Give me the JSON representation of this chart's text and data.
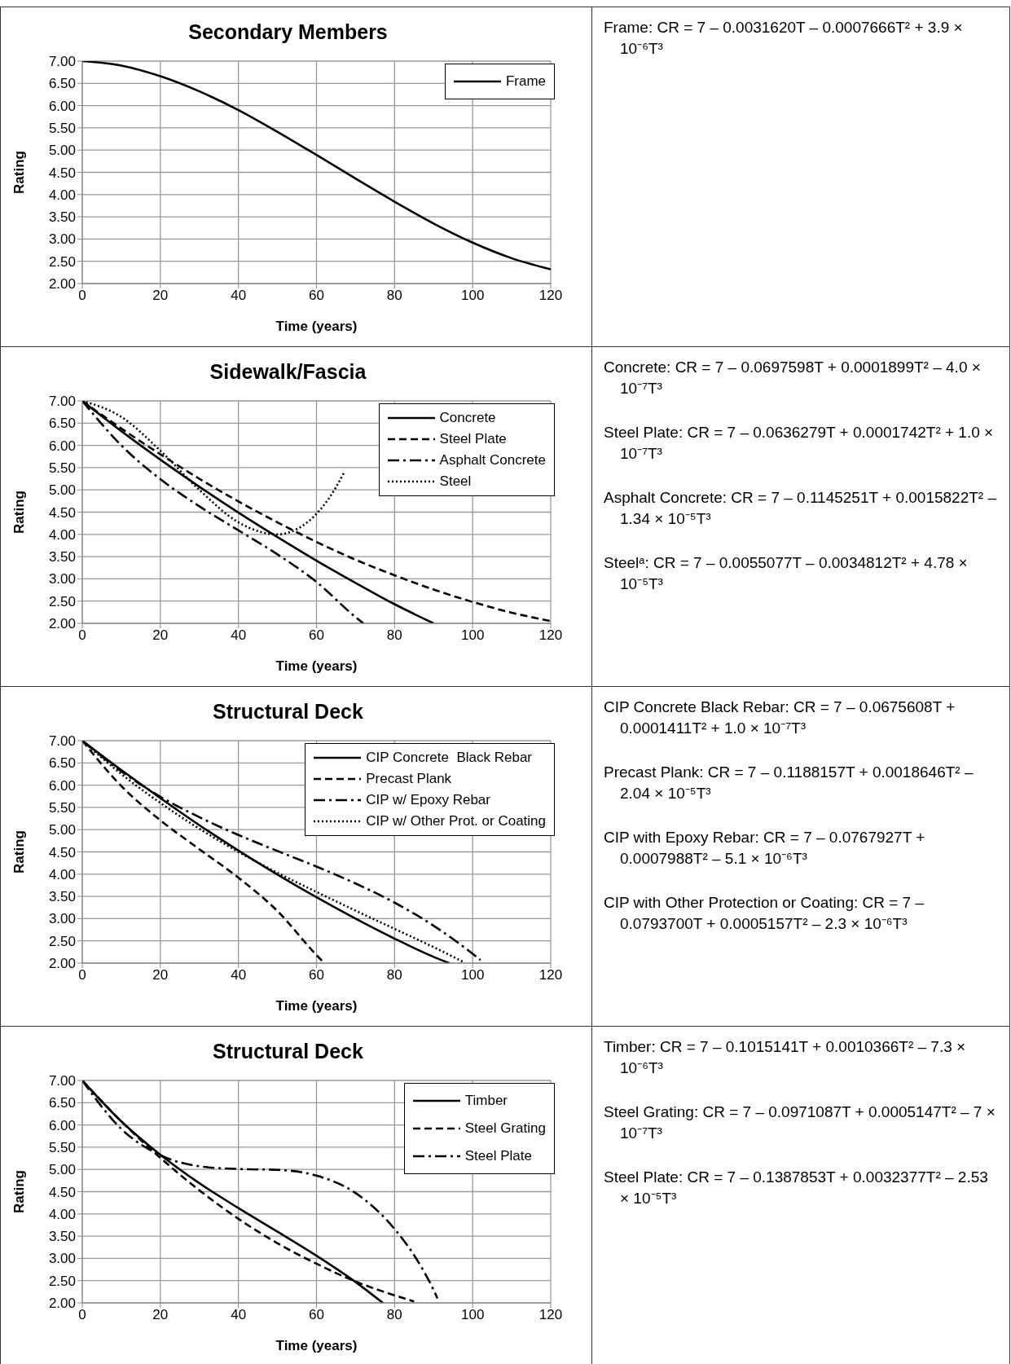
{
  "chart_data": [
    {
      "type": "line",
      "title": "Secondary Members",
      "xlabel": "Time (years)",
      "ylabel": "Rating",
      "xlim": [
        0,
        120
      ],
      "xticks": [
        0,
        20,
        40,
        60,
        80,
        100,
        120
      ],
      "ylim": [
        2,
        7
      ],
      "yticks": [
        {
          "value": 2,
          "label": "2.00"
        },
        {
          "value": 2.5,
          "label": "2.50"
        },
        {
          "value": 3,
          "label": "3.00"
        },
        {
          "value": 3.5,
          "label": "3.50"
        },
        {
          "value": 4,
          "label": "4.00"
        },
        {
          "value": 4.5,
          "label": "4.50"
        },
        {
          "value": 5,
          "label": "5.00"
        },
        {
          "value": 5.5,
          "label": "5.50"
        },
        {
          "value": 6,
          "label": "6.00"
        },
        {
          "value": 6.5,
          "label": "6.50"
        },
        {
          "value": 7,
          "label": "7.00"
        }
      ],
      "grid": true,
      "legend": "top right",
      "series": [
        {
          "name": "Frame",
          "color": "#000000",
          "line_style": "solid",
          "x": [
            0,
            10,
            20,
            30,
            40,
            50,
            60,
            70,
            80,
            90,
            100,
            110,
            120
          ],
          "values": [
            7,
            6.9,
            6.66,
            6.32,
            5.9,
            5.41,
            4.89,
            4.36,
            3.84,
            3.35,
            2.92,
            2.57,
            2.32
          ]
        }
      ]
    },
    {
      "type": "other",
      "annotations": [
        "Frame: CR = 7 – 0.0031620T – 0.0007666T² + 3.9 × 10⁻⁶T³"
      ]
    },
    {
      "type": "line",
      "title": "Sidewalk/Fascia",
      "xlabel": "Time (years)",
      "ylabel": "Rating",
      "xlim": [
        0,
        120
      ],
      "xticks": [
        0,
        20,
        40,
        60,
        80,
        100,
        120
      ],
      "ylim": [
        2,
        7
      ],
      "yticks": [
        {
          "value": 2,
          "label": "2.00"
        },
        {
          "value": 2.5,
          "label": "2.50"
        },
        {
          "value": 3,
          "label": "3.00"
        },
        {
          "value": 3.5,
          "label": "3.50"
        },
        {
          "value": 4,
          "label": "4.00"
        },
        {
          "value": 4.5,
          "label": "4.50"
        },
        {
          "value": 5,
          "label": "5.00"
        },
        {
          "value": 5.5,
          "label": "5.50"
        },
        {
          "value": 6,
          "label": "6.00"
        },
        {
          "value": 6.5,
          "label": "6.50"
        },
        {
          "value": 7,
          "label": "7.00"
        }
      ],
      "grid": true,
      "legend": "top right",
      "series": [
        {
          "name": "Concrete",
          "color": "#000000",
          "line_style": "solid",
          "x": [
            0,
            10,
            20,
            30,
            40,
            50,
            60,
            70,
            80,
            90
          ],
          "values": [
            7,
            6.32,
            5.68,
            5.07,
            4.49,
            3.94,
            3.41,
            2.91,
            2.43,
            2.0
          ]
        },
        {
          "name": "Steel Plate",
          "color": "#000000",
          "line_style": "dashed",
          "x": [
            0,
            10,
            20,
            30,
            40,
            50,
            60,
            70,
            80,
            90,
            100,
            110,
            120
          ],
          "values": [
            7,
            6.38,
            5.8,
            5.25,
            4.74,
            4.27,
            3.83,
            3.43,
            3.08,
            2.76,
            2.48,
            2.24,
            2.05
          ]
        },
        {
          "name": "Asphalt Concrete",
          "color": "#000000",
          "line_style": "dashdot",
          "x": [
            0,
            10,
            20,
            30,
            40,
            50,
            60,
            70,
            72
          ],
          "values": [
            7,
            6.0,
            5.24,
            4.63,
            4.09,
            3.55,
            2.93,
            2.14,
            2.0
          ]
        },
        {
          "name": "Steel",
          "color": "#000000",
          "line_style": "dotted",
          "x": [
            0,
            10,
            20,
            30,
            40,
            50,
            55,
            60,
            65,
            67
          ],
          "values": [
            7,
            6.64,
            5.88,
            5.0,
            4.27,
            4.0,
            4.12,
            4.46,
            5.06,
            5.38
          ]
        }
      ]
    },
    {
      "type": "other",
      "annotations": [
        "Concrete: CR = 7 – 0.0697598T + 0.0001899T² – 4.0 × 10⁻⁷T³",
        "Steel Plate: CR = 7 – 0.0636279T + 0.0001742T² + 1.0 × 10⁻⁷T³",
        "Asphalt Concrete: CR = 7 – 0.1145251T + 0.0015822T² – 1.34 × 10⁻⁵T³",
        "Steelᵃ: CR = 7 – 0.0055077T – 0.0034812T² + 4.78 × 10⁻⁵T³"
      ]
    },
    {
      "type": "line",
      "title": "Structural Deck",
      "xlabel": "Time (years)",
      "ylabel": "Rating",
      "xlim": [
        0,
        120
      ],
      "xticks": [
        0,
        20,
        40,
        60,
        80,
        100,
        120
      ],
      "ylim": [
        2,
        7
      ],
      "yticks": [
        {
          "value": 2,
          "label": "2.00"
        },
        {
          "value": 2.5,
          "label": "2.50"
        },
        {
          "value": 3,
          "label": "3.00"
        },
        {
          "value": 3.5,
          "label": "3.50"
        },
        {
          "value": 4,
          "label": "4.00"
        },
        {
          "value": 4.5,
          "label": "4.50"
        },
        {
          "value": 5,
          "label": "5.00"
        },
        {
          "value": 5.5,
          "label": "5.50"
        },
        {
          "value": 6,
          "label": "6.00"
        },
        {
          "value": 6.5,
          "label": "6.50"
        },
        {
          "value": 7,
          "label": "7.00"
        }
      ],
      "grid": true,
      "legend": "top right",
      "series": [
        {
          "name": "CIP Concrete  Black Rebar",
          "color": "#000000",
          "line_style": "solid",
          "x": [
            0,
            10,
            20,
            30,
            40,
            50,
            60,
            70,
            80,
            90,
            94
          ],
          "values": [
            7,
            6.34,
            5.71,
            5.1,
            4.53,
            3.99,
            3.48,
            3.0,
            2.55,
            2.14,
            2.0
          ]
        },
        {
          "name": "Precast Plank",
          "color": "#000000",
          "line_style": "dashed",
          "x": [
            0,
            10,
            20,
            30,
            40,
            50,
            60,
            62
          ],
          "values": [
            7,
            5.98,
            5.21,
            4.56,
            3.92,
            3.17,
            2.18,
            2.0
          ]
        },
        {
          "name": "CIP w/ Epoxy Rebar",
          "color": "#000000",
          "line_style": "dashdot",
          "x": [
            0,
            10,
            20,
            30,
            40,
            50,
            60,
            70,
            80,
            90,
            100,
            102
          ],
          "values": [
            7,
            6.31,
            5.74,
            5.28,
            4.88,
            4.52,
            4.17,
            3.79,
            3.36,
            2.84,
            2.21,
            2.07
          ]
        },
        {
          "name": "CIP w/ Other Prot. or Coating",
          "color": "#000000",
          "line_style": "dotted",
          "x": [
            0,
            10,
            20,
            30,
            40,
            50,
            60,
            70,
            80,
            90,
            98
          ],
          "values": [
            7,
            6.25,
            5.6,
            5.02,
            4.5,
            4.03,
            3.6,
            3.18,
            2.77,
            2.36,
            2.01
          ]
        }
      ]
    },
    {
      "type": "other",
      "annotations": [
        "CIP Concrete Black Rebar: CR = 7 – 0.0675608T + 0.0001411T² + 1.0 × 10⁻⁷T³",
        "Precast Plank: CR = 7 – 0.1188157T + 0.0018646T² – 2.04 × 10⁻⁵T³",
        "CIP with Epoxy Rebar: CR = 7 – 0.0767927T + 0.0007988T² – 5.1 × 10⁻⁶T³",
        "CIP with Other Protection or Coating: CR = 7 – 0.0793700T + 0.0005157T² – 2.3 × 10⁻⁶T³"
      ]
    },
    {
      "type": "line",
      "title": "Structural Deck",
      "xlabel": "Time (years)",
      "ylabel": "Rating",
      "xlim": [
        0,
        120
      ],
      "xticks": [
        0,
        20,
        40,
        60,
        80,
        100,
        120
      ],
      "ylim": [
        2,
        7
      ],
      "yticks": [
        {
          "value": 2,
          "label": "2.00"
        },
        {
          "value": 2.5,
          "label": "2.50"
        },
        {
          "value": 3,
          "label": "3.00"
        },
        {
          "value": 3.5,
          "label": "3.50"
        },
        {
          "value": 4,
          "label": "4.00"
        },
        {
          "value": 4.5,
          "label": "4.50"
        },
        {
          "value": 5,
          "label": "5.00"
        },
        {
          "value": 5.5,
          "label": "5.50"
        },
        {
          "value": 6,
          "label": "6.00"
        },
        {
          "value": 6.5,
          "label": "6.50"
        },
        {
          "value": 7,
          "label": "7.00"
        }
      ],
      "grid": true,
      "legend": "top right",
      "series": [
        {
          "name": "Timber",
          "color": "#000000",
          "line_style": "solid",
          "x": [
            0,
            10,
            20,
            30,
            40,
            50,
            60,
            70,
            77
          ],
          "values": [
            7,
            6.08,
            5.33,
            4.69,
            4.13,
            3.6,
            3.06,
            2.47,
            2.0
          ]
        },
        {
          "name": "Steel Grating",
          "color": "#000000",
          "line_style": "dashed",
          "x": [
            0,
            10,
            20,
            30,
            40,
            50,
            60,
            70,
            80,
            85
          ],
          "values": [
            7,
            6.08,
            5.26,
            4.53,
            3.89,
            3.34,
            2.88,
            2.48,
            2.17,
            2.03
          ]
        },
        {
          "name": "Steel Plate",
          "color": "#000000",
          "line_style": "dashdot",
          "x": [
            0,
            10,
            20,
            30,
            40,
            50,
            60,
            70,
            80,
            85,
            90,
            91
          ],
          "values": [
            7,
            5.91,
            5.32,
            5.07,
            5.01,
            4.99,
            4.86,
            4.47,
            3.66,
            3.07,
            2.29,
            2.1
          ]
        }
      ]
    },
    {
      "type": "other",
      "annotations": [
        "Timber: CR = 7 – 0.1015141T + 0.0010366T² – 7.3 × 10⁻⁶T³",
        "Steel Grating: CR = 7 – 0.0971087T + 0.0005147T² – 7 × 10⁻⁷T³",
        "Steel Plate: CR = 7 – 0.1387853T + 0.0032377T² – 2.53 × 10⁻⁵T³"
      ]
    }
  ]
}
